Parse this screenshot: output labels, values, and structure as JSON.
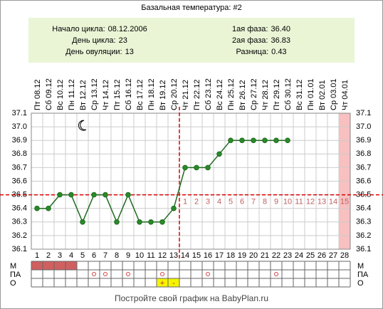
{
  "chart_data": {
    "type": "line",
    "title": "Базальная температура: #2",
    "info_left": [
      {
        "label": "Начало цикла:",
        "value": "08.12.2006"
      },
      {
        "label": "День цикла:",
        "value": 23
      },
      {
        "label": "День овуляции:",
        "value": 13
      }
    ],
    "info_right": [
      {
        "label": "1ая фаза:",
        "value": "36.40"
      },
      {
        "label": "2ая фаза:",
        "value": "36.83"
      },
      {
        "label": "Разница:",
        "value": "0.43"
      }
    ],
    "dates": [
      "Пт 08.12",
      "Сб 09.12",
      "Вс 10.12",
      "Пн 11.12",
      "Вт 12.12",
      "Ср 13.12",
      "Чт 14.12",
      "Пт 15.12",
      "Сб 16.12",
      "Вс 17.12",
      "Пн 18.12",
      "Вт 19.12",
      "Ср 20.12",
      "Чт 21.12",
      "Пт 22.12",
      "Сб 23.12",
      "Вс 24.12",
      "Пн 25.12",
      "Вт 26.12",
      "Ср 27.12",
      "Чт 28.12",
      "Пт 29.12",
      "Сб 30.12",
      "Вс 31.12",
      "Пн 01.01",
      "Вт 02.01",
      "Ср 03.01",
      "Чт 04.01"
    ],
    "days": [
      1,
      2,
      3,
      4,
      5,
      6,
      7,
      8,
      9,
      10,
      11,
      12,
      13,
      14,
      15,
      16,
      17,
      18,
      19,
      20,
      21,
      22,
      23,
      24,
      25,
      26,
      27,
      28
    ],
    "series": [
      {
        "color": "#1f6b1f",
        "values": [
          36.4,
          36.4,
          36.5,
          36.5,
          36.3,
          36.5,
          36.5,
          36.3,
          36.5,
          36.3,
          36.3,
          36.3,
          36.4,
          36.7,
          36.7,
          36.7,
          36.8,
          36.9,
          36.9,
          36.9,
          36.9,
          36.9,
          36.9,
          null,
          null,
          null,
          null,
          null
        ]
      }
    ],
    "ylim": [
      36.1,
      37.1
    ],
    "yticks": [
      36.1,
      36.2,
      36.3,
      36.4,
      36.5,
      36.6,
      36.7,
      36.8,
      36.9,
      {
        "value": 37,
        "label": "37.0"
      },
      37.1
    ],
    "coverline": 36.5,
    "phase2_days": [
      null,
      null,
      null,
      null,
      null,
      null,
      null,
      null,
      null,
      null,
      null,
      null,
      null,
      1,
      2,
      3,
      4,
      5,
      6,
      7,
      8,
      9,
      10,
      11,
      12,
      13,
      14,
      15
    ],
    "highlight_day": 28,
    "moon_day": 5,
    "rows": [
      "М",
      "ПА",
      "О"
    ],
    "m_days": [
      1,
      2,
      3,
      4
    ],
    "pa_days": [
      6,
      7,
      9,
      12,
      16,
      22
    ],
    "o_marks": [
      {
        "day": 12,
        "label": "+"
      },
      {
        "day": 13,
        "label": "-"
      }
    ],
    "footer": "Постройте свой график на BabyPlan.ru"
  }
}
